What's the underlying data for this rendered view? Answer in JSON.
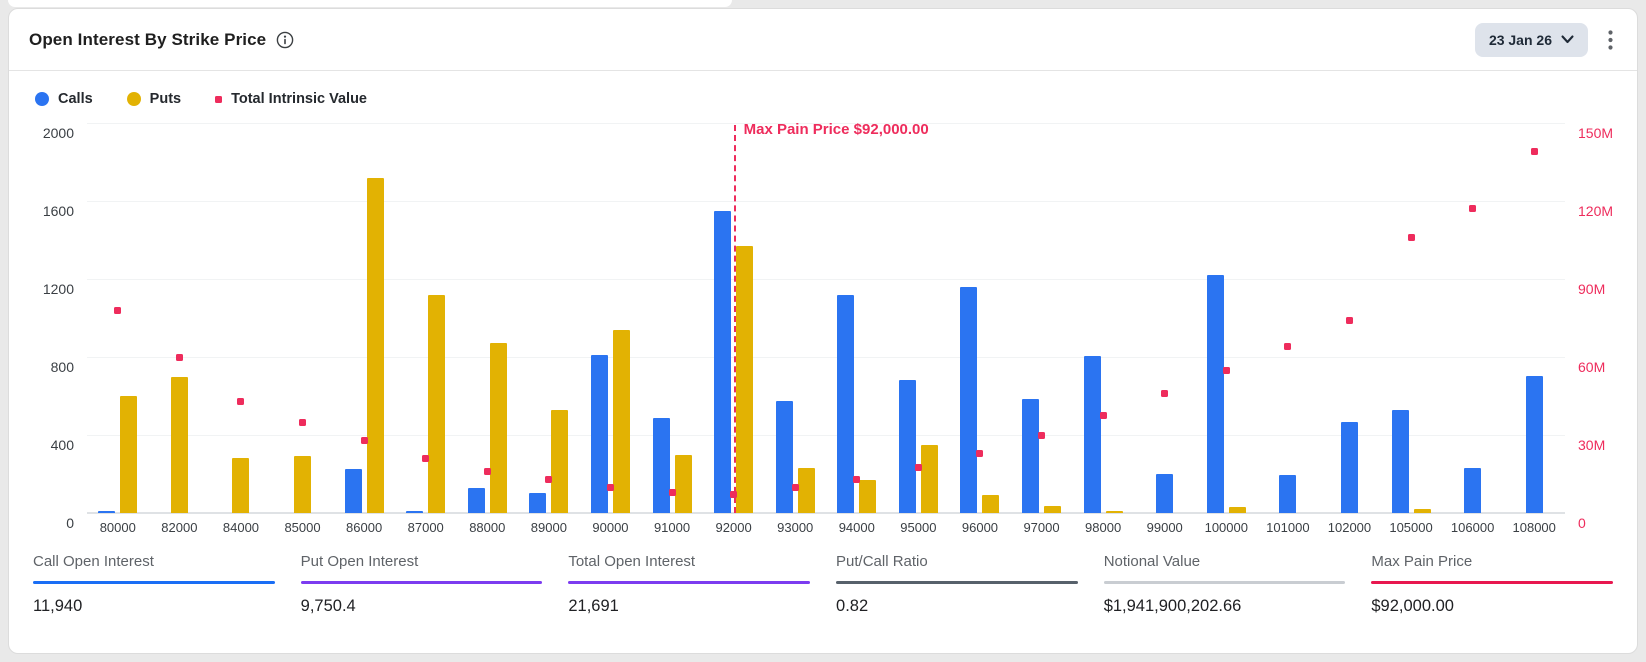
{
  "header": {
    "title": "Open Interest By Strike Price",
    "date_label": "23 Jan 26"
  },
  "legend": [
    {
      "label": "Calls",
      "color": "#2b74f1",
      "marker": "circle"
    },
    {
      "label": "Puts",
      "color": "#e2b203",
      "marker": "circle"
    },
    {
      "label": "Total Intrinsic Value",
      "color": "#ee2c5c",
      "marker": "square"
    }
  ],
  "chart_data": {
    "type": "bar",
    "title": "Open Interest By Strike Price",
    "xlabel": "",
    "ylabel": "",
    "categories": [
      "80000",
      "82000",
      "84000",
      "85000",
      "86000",
      "87000",
      "88000",
      "89000",
      "90000",
      "91000",
      "92000",
      "93000",
      "94000",
      "95000",
      "96000",
      "97000",
      "98000",
      "99000",
      "100000",
      "101000",
      "102000",
      "105000",
      "106000",
      "108000"
    ],
    "series": [
      {
        "name": "Calls",
        "type": "bar",
        "axis": "left",
        "color": "#2b74f1",
        "values": [
          10,
          0,
          0,
          0,
          225,
          10,
          130,
          105,
          810,
          485,
          1550,
          575,
          1120,
          680,
          1160,
          585,
          805,
          200,
          1220,
          195,
          465,
          530,
          230,
          705
        ]
      },
      {
        "name": "Puts",
        "type": "bar",
        "axis": "left",
        "color": "#e2b203",
        "values": [
          600,
          700,
          280,
          290,
          1720,
          1120,
          870,
          530,
          940,
          300,
          1370,
          230,
          170,
          350,
          90,
          35,
          10,
          0,
          30,
          0,
          0,
          20,
          0,
          0
        ]
      },
      {
        "name": "Total Intrinsic Value",
        "type": "scatter",
        "axis": "right",
        "color": "#ee2c5c",
        "unit": "M",
        "values": [
          78,
          60,
          43,
          35,
          28,
          21,
          16,
          13,
          10,
          8,
          7,
          10,
          13,
          17.5,
          23,
          30,
          37.5,
          46,
          55,
          64,
          74,
          106,
          117,
          139
        ]
      }
    ],
    "left_axis": {
      "ticks": [
        "2000",
        "1600",
        "1200",
        "800",
        "400",
        "0"
      ],
      "max": 2000,
      "min": 0,
      "grid": true
    },
    "right_axis": {
      "ticks": [
        "150M",
        "120M",
        "90M",
        "60M",
        "30M",
        "0"
      ],
      "max": 150,
      "min": 0
    },
    "legend_position": "top-left",
    "annotation": {
      "label": "Max Pain Price $92,000.00",
      "category": "92000",
      "color": "#ee2c5c",
      "style": "dashed-vertical-line"
    }
  },
  "stats": [
    {
      "label": "Call Open Interest",
      "value": "11,940",
      "underline_color": "#1a6ef5"
    },
    {
      "label": "Put Open Interest",
      "value": "9,750.4",
      "underline_color": "#7c3cf0"
    },
    {
      "label": "Total Open Interest",
      "value": "21,691",
      "underline_color": "#7c3cf0"
    },
    {
      "label": "Put/Call Ratio",
      "value": "0.82",
      "underline_color": "#57616b"
    },
    {
      "label": "Notional Value",
      "value": "$1,941,900,202.66",
      "underline_color": "#c9cdd2"
    },
    {
      "label": "Max Pain Price",
      "value": "$92,000.00",
      "underline_color": "#e8174f"
    }
  ]
}
